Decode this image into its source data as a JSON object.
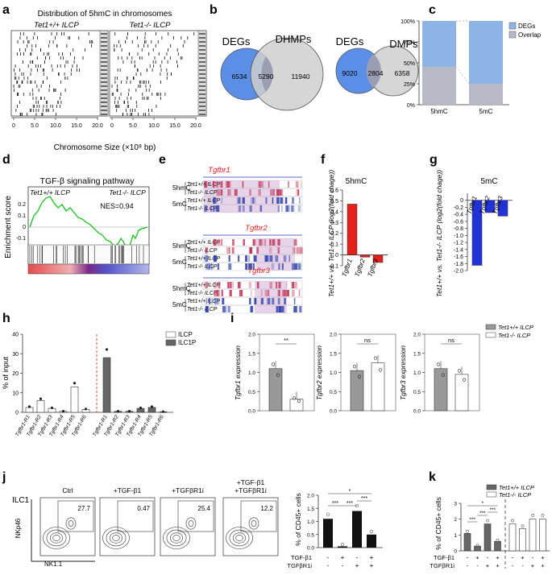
{
  "panel_labels": [
    "a",
    "b",
    "c",
    "d",
    "e",
    "f",
    "g",
    "h",
    "i",
    "j",
    "k"
  ],
  "panel_a": {
    "title": "Distribution of 5hmC in chromosomes",
    "left_label": "Tet1+/+ ILCP",
    "right_label": "Tet1-/- ILCP",
    "ticks": [
      "0",
      "5.0",
      "10.0",
      "15.0",
      "20.0"
    ],
    "xlabel": "Chromosome Size (×10⁸ bp)"
  },
  "panel_b": {
    "venn1": {
      "left_name": "DEGs",
      "right_name": "DHMPs",
      "left_only": "6534",
      "overlap": "5290",
      "right_only": "11940"
    },
    "venn2": {
      "left_name": "DEGs",
      "right_name": "DMPs",
      "left_only": "9020",
      "overlap": "2804",
      "right_only": "6358"
    }
  },
  "panel_d": {
    "title": "TGF-β signaling pathway",
    "left_label": "Tet1+/+ ILCP",
    "right_label": "Tet1-/- ILCP",
    "nes": "NES=0.94",
    "ylabel": "Enrichment score",
    "yticks": [
      "0.2",
      "0.1",
      "0",
      "-0.1"
    ]
  },
  "panel_e": {
    "genes": [
      "Tgfbr1",
      "Tgfbr2",
      "Tgfbr3"
    ],
    "mark_5hmC": "5hmC",
    "mark_5mC": "5mC",
    "wt": "Tet1+/+ ILCP",
    "ko": "Tet1-/- ILCP"
  },
  "panel_f_title": "5hmC",
  "panel_g_title": "5mC",
  "panel_fg_ylabel": "Tet1+/+ vs. Tet1-/- ILCP (log2(fold chage))",
  "panel_j": {
    "ilc1": "ILC1",
    "nkp46": "NKp46",
    "nk11": "NK1.1",
    "ylabel": "% of CD45+ cells",
    "row_tgf": "TGF-β1",
    "row_inh": "TGFβR1i",
    "facs": [
      {
        "title": "Ctrl",
        "value": "27.7"
      },
      {
        "title": "+TGF-β1",
        "value": "0.47"
      },
      {
        "title": "+TGFβR1i",
        "value": "25.4"
      },
      {
        "title": "+TGF-β1 +TGFβR1i",
        "value": "12.2"
      }
    ],
    "signs_tgf": [
      "-",
      "+",
      "-",
      "+"
    ],
    "signs_inh": [
      "-",
      "-",
      "+",
      "+"
    ]
  },
  "panel_k": {
    "legend_wt": "Tet1+/+ ILCP",
    "legend_ko": "Tet1-/- ILCP",
    "ylabel": "% of CD45+ cells",
    "signs_tgf": [
      "-",
      "+",
      "-",
      "+",
      "-",
      "+",
      "-",
      "+"
    ],
    "signs_inh": [
      "-",
      "-",
      "+",
      "+",
      "-",
      "-",
      "+",
      "+"
    ]
  },
  "panel_i_legend": {
    "wt": "Tet1+/+ ILCP",
    "ko": "Tet1-/- ILCP"
  },
  "chart_data": [
    {
      "id": "c",
      "type": "bar",
      "stacked": true,
      "categories": [
        "5hmC",
        "5mC"
      ],
      "series": [
        {
          "name": "DEGs",
          "color": "#8eb4e6",
          "values": [
            55,
            75
          ]
        },
        {
          "name": "Overlap",
          "color": "#b7b9c6",
          "values": [
            45,
            25
          ]
        }
      ],
      "yticks": [
        "0%",
        "25%",
        "50%",
        "75%",
        "100%"
      ],
      "ylim": [
        0,
        100
      ]
    },
    {
      "id": "f",
      "type": "bar",
      "title": "5hmC",
      "categories": [
        "Tgfbr1",
        "Tgfbr2",
        "Tgfbr3"
      ],
      "values": [
        0.47,
        -0.02,
        -0.07
      ],
      "colors": [
        "#e3211c",
        "#e3211c",
        "#e3211c"
      ],
      "ylim": [
        -0.1,
        0.6
      ],
      "yticks": [
        "-0.1",
        "0",
        "0.1",
        "0.2",
        "0.3",
        "0.4",
        "0.5",
        "0.6"
      ]
    },
    {
      "id": "g",
      "type": "bar",
      "title": "5mC",
      "categories": [
        "Tgfbr1",
        "Tgfbr2",
        "Tgfbr3"
      ],
      "values": [
        -1.85,
        -0.35,
        -0.45
      ],
      "colors": [
        "#2231d8",
        "#2231d8",
        "#2231d8"
      ],
      "ylim": [
        -2.0,
        0.2
      ],
      "yticks": [
        "0",
        "-0.2",
        "-0.4",
        "-0.6",
        "-0.8",
        "-1.0",
        "-1.2",
        "-1.4",
        "-1.6",
        "-1.8",
        "-2.0"
      ]
    },
    {
      "id": "h",
      "type": "bar",
      "ylabel": "% of input",
      "legend": [
        "ILCP",
        "ILC1P"
      ],
      "categories": [
        "Tgfbr1-R1",
        "Tgfbr1-R2",
        "Tgfbr1-R3",
        "Tgfbr1-R4",
        "Tgfbr1-R5",
        "Tgfbr1-R6",
        "Tgfbr1-R1",
        "Tgfbr1-R2",
        "Tgfbr1-R3",
        "Tgfbr1-R4",
        "Tgfbr1-R5",
        "Tgfbr1-R6"
      ],
      "values": [
        2.5,
        6,
        2,
        0.5,
        13,
        1.5,
        28,
        0.5,
        0.5,
        2,
        2.5,
        0.3
      ],
      "groups": [
        "ILCP",
        "ILCP",
        "ILCP",
        "ILCP",
        "ILCP",
        "ILCP",
        "ILC1P",
        "ILC1P",
        "ILC1P",
        "ILC1P",
        "ILC1P",
        "ILC1P"
      ],
      "ylim": [
        0,
        40
      ],
      "yticks": [
        "0",
        "10",
        "20",
        "30",
        "40"
      ]
    },
    {
      "id": "i1",
      "type": "bar",
      "ylabel": "Tgfbr1 expression",
      "categories": [
        "Tet1+/+ ILCP",
        "Tet1-/- ILCP"
      ],
      "values": [
        1.1,
        0.3
      ],
      "sig": "**",
      "ylim": [
        0,
        2.0
      ],
      "yticks": [
        "0.0",
        "0.5",
        "1.0",
        "1.5",
        "2.0"
      ]
    },
    {
      "id": "i2",
      "type": "bar",
      "ylabel": "Tgfbr2 expression",
      "categories": [
        "Tet1+/+ ILCP",
        "Tet1-/- ILCP"
      ],
      "values": [
        1.05,
        1.25
      ],
      "sig": "ns",
      "ylim": [
        0,
        2.0
      ],
      "yticks": [
        "0.0",
        "0.5",
        "1.0",
        "1.5",
        "2.0"
      ]
    },
    {
      "id": "i3",
      "type": "bar",
      "ylabel": "Tgfbr3 expression",
      "categories": [
        "Tet1+/+ ILCP",
        "Tet1-/- ILCP"
      ],
      "values": [
        1.1,
        0.95
      ],
      "sig": "ns",
      "ylim": [
        0,
        2.0
      ],
      "yticks": [
        "0.0",
        "0.5",
        "1.0",
        "1.5",
        "2.0"
      ]
    },
    {
      "id": "j",
      "type": "bar",
      "ylabel": "% of CD45+ cells",
      "categories": [
        "Ctrl",
        "+TGF-β1",
        "+TGFβR1i",
        "+TGF-β1 +TGFβR1i"
      ],
      "values": [
        1.1,
        0.05,
        1.4,
        0.5
      ],
      "ylim": [
        0,
        2.0
      ],
      "yticks": [
        "0.0",
        "0.5",
        "1.0",
        "1.5",
        "2.0"
      ]
    },
    {
      "id": "k",
      "type": "bar",
      "ylabel": "% of CD45+ cells",
      "series": [
        {
          "name": "Tet1+/+ ILCP",
          "values": [
            1.1,
            0.3,
            1.7,
            0.6
          ]
        },
        {
          "name": "Tet1-/- ILCP",
          "values": [
            1.7,
            1.4,
            2.0,
            2.0
          ]
        }
      ],
      "ylim": [
        0,
        3
      ],
      "yticks": [
        "0",
        "1",
        "2",
        "3"
      ]
    }
  ]
}
